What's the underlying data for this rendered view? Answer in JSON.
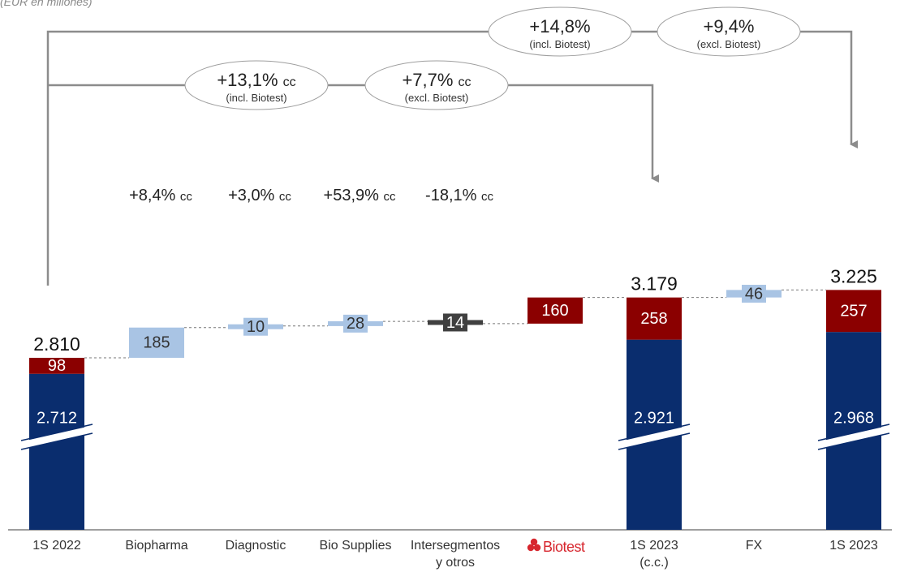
{
  "subtitle": "(EUR en millones)",
  "colors": {
    "navy": "#0a2d6e",
    "red": "#8b0000",
    "lightblue": "#a9c4e4",
    "dark": "#404040",
    "text": "#333333",
    "bracket": "#8c8c8c",
    "biotest_logo": "#d7262e"
  },
  "chart_data": {
    "type": "bar",
    "variant": "waterfall",
    "ylim": [
      0,
      3300
    ],
    "axis_break": true,
    "categories": [
      "1S 2022",
      "Biopharma",
      "Diagnostic",
      "Bio Supplies",
      "Intersegmentos y otros",
      "Biotest",
      "1S 2023 (c.c.)",
      "FX",
      "1S 2023"
    ],
    "category_lines": [
      [
        "1S 2022"
      ],
      [
        "Biopharma"
      ],
      [
        "Diagnostic"
      ],
      [
        "Bio Supplies"
      ],
      [
        "Intersegmentos",
        "y otros"
      ],
      [
        ""
      ],
      [
        "1S 2023",
        "(c.c.)"
      ],
      [
        "FX"
      ],
      [
        "1S 2023"
      ]
    ],
    "biotest_logo_text": "Biotest",
    "totals": [
      {
        "category": "1S 2022",
        "total": 2810,
        "total_label": "2.810",
        "base": 2712,
        "base_label": "2.712",
        "biotest": 98,
        "biotest_label": "98"
      },
      {
        "category": "1S 2023 (c.c.)",
        "total": 3179,
        "total_label": "3.179",
        "base": 2921,
        "base_label": "2.921",
        "biotest": 258,
        "biotest_label": "258"
      },
      {
        "category": "1S 2023",
        "total": 3225,
        "total_label": "3.225",
        "base": 2968,
        "base_label": "2.968",
        "biotest": 257,
        "biotest_label": "257"
      }
    ],
    "steps": [
      {
        "category": "Biopharma",
        "start": 2810,
        "end": 2995,
        "value": 185,
        "label": "185",
        "color": "lightblue"
      },
      {
        "category": "Diagnostic",
        "start": 2995,
        "end": 3005,
        "value": 10,
        "label": "10",
        "color": "lightblue"
      },
      {
        "category": "Bio Supplies",
        "start": 3005,
        "end": 3033,
        "value": 28,
        "label": "28",
        "color": "lightblue"
      },
      {
        "category": "Intersegmentos y otros",
        "start": 3033,
        "end": 3019,
        "value": -14,
        "label": "14",
        "color": "dark"
      },
      {
        "category": "Biotest",
        "start": 3019,
        "end": 3179,
        "value": 160,
        "label": "160",
        "color": "red"
      },
      {
        "category": "FX",
        "start": 3179,
        "end": 3225,
        "value": 46,
        "label": "46",
        "color": "lightblue"
      }
    ],
    "growth_rates": [
      {
        "category": "Biopharma",
        "value": "+8,4%",
        "unit": "cc"
      },
      {
        "category": "Diagnostic",
        "value": "+3,0%",
        "unit": "cc"
      },
      {
        "category": "Bio Supplies",
        "value": "+53,9%",
        "unit": "cc"
      },
      {
        "category": "Intersegmentos y otros",
        "value": "-18,1%",
        "unit": "cc"
      }
    ],
    "bubbles": [
      {
        "id": "b1",
        "value": "+14,8%",
        "unit": "",
        "note": "(incl. Biotest)"
      },
      {
        "id": "b2",
        "value": "+9,4%",
        "unit": "",
        "note": "(excl. Biotest)"
      },
      {
        "id": "b3",
        "value": "+13,1%",
        "unit": "cc",
        "note": "(incl. Biotest)"
      },
      {
        "id": "b4",
        "value": "+7,7%",
        "unit": "cc",
        "note": "(excl. Biotest)"
      }
    ]
  }
}
